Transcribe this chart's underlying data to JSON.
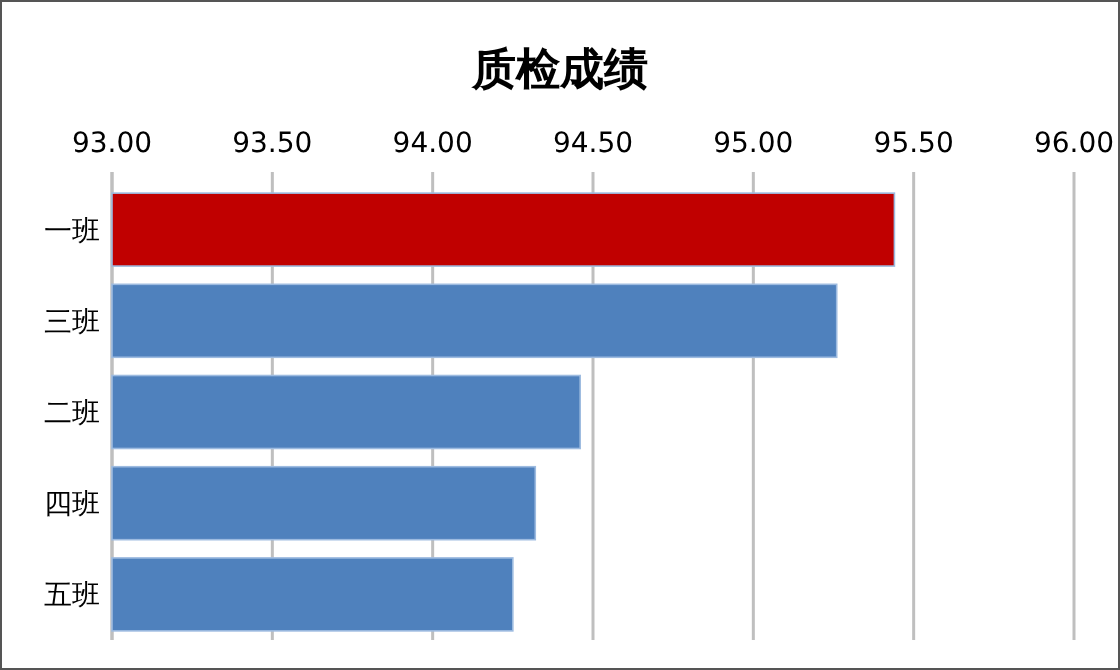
{
  "chart_data": {
    "type": "bar",
    "orientation": "horizontal",
    "title": "质检成绩",
    "categories": [
      "一班",
      "三班",
      "二班",
      "四班",
      "五班"
    ],
    "values": [
      95.44,
      95.26,
      94.46,
      94.32,
      94.25
    ],
    "colors": [
      "#c00000",
      "#4f81bd",
      "#4f81bd",
      "#4f81bd",
      "#4f81bd"
    ],
    "xlim": [
      93,
      96
    ],
    "xticks": [
      {
        "value": 93,
        "label": "93.00"
      },
      {
        "value": 93.5,
        "label": "93.50"
      },
      {
        "value": 94,
        "label": "94.00"
      },
      {
        "value": 94.5,
        "label": "94.50"
      },
      {
        "value": 95,
        "label": "95.00"
      },
      {
        "value": 95.5,
        "label": "95.50"
      },
      {
        "value": 96,
        "label": "96.00"
      }
    ],
    "grid": "x"
  }
}
